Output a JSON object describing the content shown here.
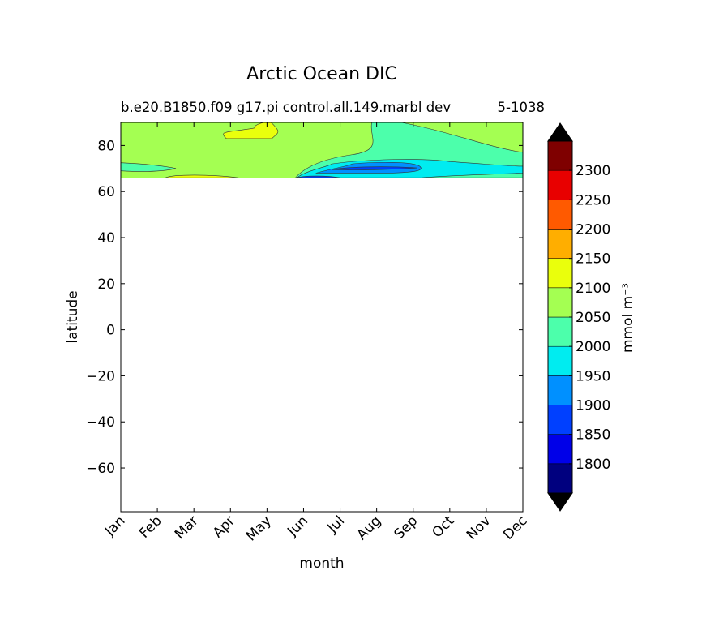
{
  "chart_data": {
    "type": "contour",
    "title": "Arctic Ocean DIC",
    "subtitle_left": "b.e20.B1850.f09 g17.pi control.all.149.marbl dev",
    "subtitle_right": "5-1038",
    "xlabel": "month",
    "ylabel": "latitude",
    "x_categories": [
      "Jan",
      "Feb",
      "Mar",
      "Apr",
      "May",
      "Jun",
      "Jul",
      "Aug",
      "Sep",
      "Oct",
      "Nov",
      "Dec"
    ],
    "ylim": [
      -79,
      90
    ],
    "y_ticks": [
      -60,
      -40,
      -20,
      0,
      20,
      40,
      60,
      80
    ],
    "data_lat_range": [
      66,
      90
    ],
    "colorbar": {
      "label": "mmol m⁻³",
      "ticks": [
        1800,
        2300,
        2250,
        2200,
        2150,
        2100,
        2050,
        2000,
        1950,
        1900,
        1850
      ],
      "tick_values": [
        1800,
        1850,
        1900,
        1950,
        2000,
        2050,
        2100,
        2150,
        2200,
        2250,
        2300
      ],
      "tick_labels": [
        "1800",
        "1850",
        "1900",
        "1950",
        "2000",
        "2050",
        "2100",
        "2150",
        "2200",
        "2250",
        "2300"
      ],
      "levels": [
        1750,
        1800,
        1850,
        1900,
        1950,
        2000,
        2050,
        2100,
        2150,
        2200,
        2250,
        2300,
        2350
      ],
      "colors": [
        "#00007f",
        "#0000e8",
        "#0040ff",
        "#0090ff",
        "#00ecf0",
        "#4cffab",
        "#a4ff52",
        "#eaff0c",
        "#ffae00",
        "#ff5a00",
        "#e80000",
        "#7f0000"
      ],
      "extend_colors": {
        "under": "#000000",
        "over": "#000000"
      }
    },
    "regions": [
      {
        "level": "2050-2100",
        "note": "background field 66N-90N"
      },
      {
        "level": "2100-2150",
        "months": [
          "Apr",
          "May"
        ],
        "lat": [
          83,
          89
        ]
      },
      {
        "level": "2000-2050",
        "months": [
          "Jun",
          "Dec"
        ],
        "lat": [
          68,
          90
        ]
      },
      {
        "level": "1950-2000",
        "months": [
          "Jun",
          "Oct"
        ],
        "lat": [
          66,
          74
        ]
      },
      {
        "level": "1900-1950",
        "months": [
          "Jul",
          "Sep"
        ],
        "lat": [
          68,
          73
        ]
      },
      {
        "level": "1850-1900",
        "months": [
          "Jul",
          "Sep"
        ],
        "lat": [
          69.5,
          71
        ]
      }
    ]
  }
}
